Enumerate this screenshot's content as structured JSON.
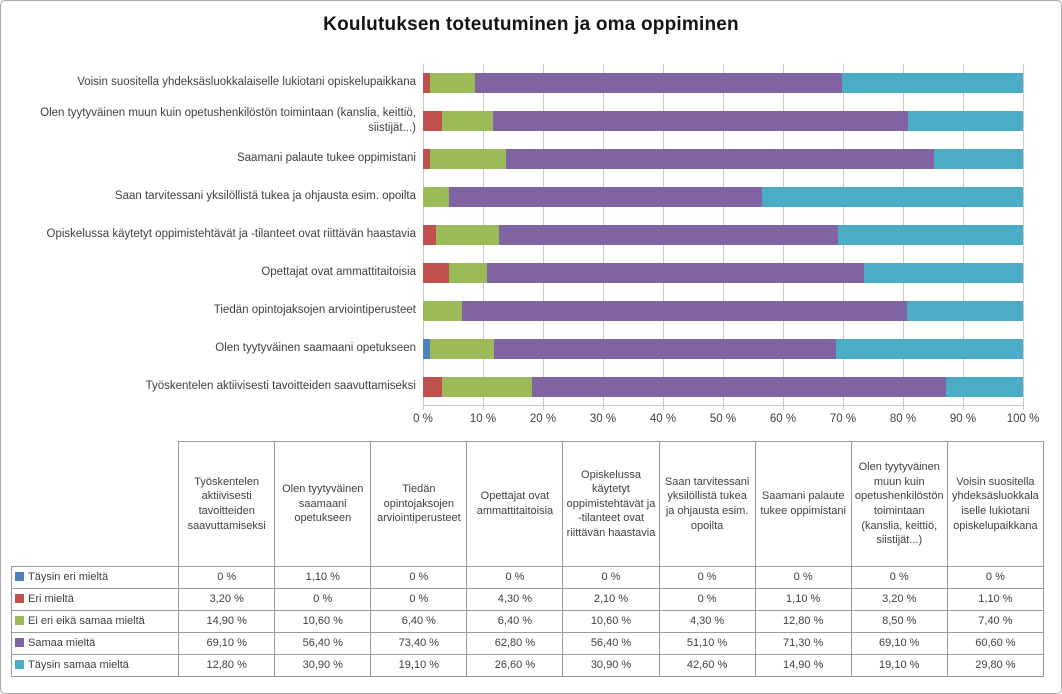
{
  "chart_data": {
    "type": "bar",
    "variant": "100%-stacked-horizontal",
    "title": "Koulutuksen toteutuminen ja oma oppiminen",
    "categories": [
      "Työskentelen aktiivisesti tavoitteiden saavuttamiseksi",
      "Olen tyytyväinen saamaani opetukseen",
      "Tiedän opintojaksojen arviointiperusteet",
      "Opettajat ovat ammattitaitoisia",
      "Opiskelussa käytetyt oppimistehtävät ja -tilanteet ovat riittävän haastavia",
      "Saan tarvitessani yksilöllistä tukea ja ohjausta esim. opoilta",
      "Saamani palaute tukee oppimistani",
      "Olen tyytyväinen muun kuin opetushenkilöstön toimintaan (kanslia, keittiö, siistijät...)",
      "Voisin suositella yhdeksäsluokkalaiselle lukiotani opiskelupaikkana"
    ],
    "category_order_note": "categories listed in table column order; chart displays them bottom-to-top",
    "series": [
      {
        "name": "Täysin eri mieltä",
        "color": "#4F81BD",
        "values": [
          0,
          1.1,
          0,
          0,
          0,
          0,
          0,
          0,
          0
        ],
        "display": [
          "0 %",
          "1,10 %",
          "0 %",
          "0 %",
          "0 %",
          "0 %",
          "0 %",
          "0 %",
          "0 %"
        ]
      },
      {
        "name": "Eri mieltä",
        "color": "#C0504D",
        "values": [
          3.2,
          0,
          0,
          4.3,
          2.1,
          0,
          1.1,
          3.2,
          1.1
        ],
        "display": [
          "3,20 %",
          "0 %",
          "0 %",
          "4,30 %",
          "2,10 %",
          "0 %",
          "1,10 %",
          "3,20 %",
          "1,10 %"
        ]
      },
      {
        "name": "Ei eri eikä samaa mieltä",
        "color": "#9BBB59",
        "values": [
          14.9,
          10.6,
          6.4,
          6.4,
          10.6,
          4.3,
          12.8,
          8.5,
          7.4
        ],
        "display": [
          "14,90 %",
          "10,60 %",
          "6,40 %",
          "6,40 %",
          "10,60 %",
          "4,30 %",
          "12,80 %",
          "8,50 %",
          "7,40 %"
        ]
      },
      {
        "name": "Samaa mieltä",
        "color": "#8064A2",
        "values": [
          69.1,
          56.4,
          73.4,
          62.8,
          56.4,
          51.1,
          71.3,
          69.1,
          60.6
        ],
        "display": [
          "69,10 %",
          "56,40 %",
          "73,40 %",
          "62,80 %",
          "56,40 %",
          "51,10 %",
          "71,30 %",
          "69,10 %",
          "60,60 %"
        ]
      },
      {
        "name": "Täysin samaa mieltä",
        "color": "#4BACC6",
        "values": [
          12.8,
          30.9,
          19.1,
          26.6,
          30.9,
          42.6,
          14.9,
          19.1,
          29.8
        ],
        "display": [
          "12,80 %",
          "30,90 %",
          "19,10 %",
          "26,60 %",
          "30,90 %",
          "42,60 %",
          "14,90 %",
          "19,10 %",
          "29,80 %"
        ]
      }
    ],
    "x_ticks": [
      "0 %",
      "10 %",
      "20 %",
      "30 %",
      "40 %",
      "50 %",
      "60 %",
      "70 %",
      "80 %",
      "90 %",
      "100 %"
    ],
    "xlim": [
      0,
      100
    ],
    "grid": true,
    "gridline_color": "#C9C9C9",
    "legend_position": "data-table-left-column"
  }
}
